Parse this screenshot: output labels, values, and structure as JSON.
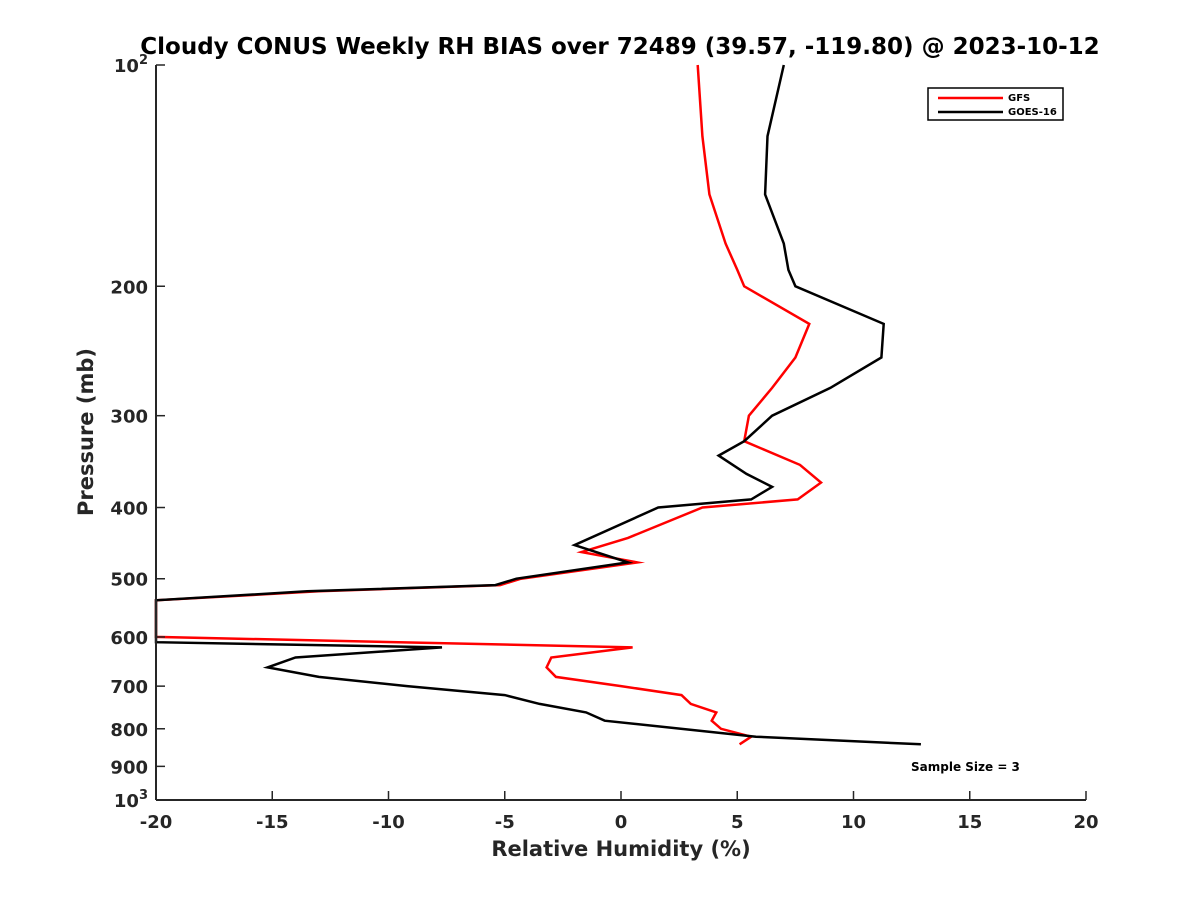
{
  "chart_data": {
    "type": "line",
    "title": "Cloudy CONUS Weekly RH BIAS over 72489 (39.57, -119.80) @ 2023-10-12",
    "xlabel": "Relative Humidity (%)",
    "ylabel": "Pressure (mb)",
    "xlim": [
      -20,
      20
    ],
    "ylim": [
      100,
      1000
    ],
    "yscale": "log",
    "yreversed": true,
    "grid": false,
    "legend_position": "top-right",
    "x_ticks": [
      -20,
      -15,
      -10,
      -5,
      0,
      5,
      10,
      15,
      20
    ],
    "x_tick_labels": [
      "-20",
      "-15",
      "-10",
      "-5",
      "0",
      "5",
      "10",
      "15",
      "20"
    ],
    "y_ticks": [
      100,
      200,
      300,
      400,
      500,
      600,
      700,
      800,
      900,
      1000
    ],
    "y_tick_labels": [
      {
        "base": "10",
        "exp": "2"
      },
      {
        "base": "200",
        "exp": ""
      },
      {
        "base": "300",
        "exp": ""
      },
      {
        "base": "400",
        "exp": ""
      },
      {
        "base": "500",
        "exp": ""
      },
      {
        "base": "600",
        "exp": ""
      },
      {
        "base": "700",
        "exp": ""
      },
      {
        "base": "800",
        "exp": ""
      },
      {
        "base": "900",
        "exp": ""
      },
      {
        "base": "10",
        "exp": "3"
      }
    ],
    "annotation": "Sample Size = 3",
    "series": [
      {
        "name": "GFS",
        "color": "#ff0000",
        "points": [
          [
            3.3,
            100
          ],
          [
            3.5,
            125
          ],
          [
            3.8,
            150
          ],
          [
            4.5,
            175
          ],
          [
            5.0,
            190
          ],
          [
            5.3,
            200
          ],
          [
            8.1,
            225
          ],
          [
            7.5,
            250
          ],
          [
            6.5,
            275
          ],
          [
            5.5,
            300
          ],
          [
            5.3,
            325
          ],
          [
            7.7,
            350
          ],
          [
            8.6,
            370
          ],
          [
            7.6,
            390
          ],
          [
            3.5,
            400
          ],
          [
            0.3,
            440
          ],
          [
            -1.7,
            460
          ],
          [
            0.7,
            475
          ],
          [
            -4.3,
            500
          ],
          [
            -5.2,
            510
          ],
          [
            -13,
            520
          ],
          [
            -20,
            535
          ],
          [
            -20,
            600
          ],
          [
            0.5,
            620
          ],
          [
            -3.0,
            640
          ],
          [
            -3.2,
            660
          ],
          [
            -2.8,
            680
          ],
          [
            0.0,
            700
          ],
          [
            2.6,
            720
          ],
          [
            3.0,
            740
          ],
          [
            4.1,
            760
          ],
          [
            3.9,
            780
          ],
          [
            4.3,
            800
          ],
          [
            5.6,
            820
          ],
          [
            5.1,
            840
          ]
        ]
      },
      {
        "name": "GOES-16",
        "color": "#000000",
        "points": [
          [
            7.0,
            100
          ],
          [
            6.3,
            125
          ],
          [
            6.2,
            150
          ],
          [
            7.0,
            175
          ],
          [
            7.2,
            190
          ],
          [
            7.5,
            200
          ],
          [
            11.3,
            225
          ],
          [
            11.2,
            250
          ],
          [
            9.0,
            275
          ],
          [
            6.5,
            300
          ],
          [
            5.3,
            325
          ],
          [
            4.2,
            340
          ],
          [
            5.4,
            360
          ],
          [
            6.5,
            375
          ],
          [
            5.6,
            390
          ],
          [
            1.6,
            400
          ],
          [
            -2.0,
            450
          ],
          [
            0.3,
            475
          ],
          [
            -4.5,
            500
          ],
          [
            -5.4,
            510
          ],
          [
            -13.5,
            520
          ],
          [
            -20,
            535
          ],
          [
            -20,
            610
          ],
          [
            -7.7,
            620
          ],
          [
            -14.0,
            640
          ],
          [
            -15.2,
            660
          ],
          [
            -13.0,
            680
          ],
          [
            -9.2,
            700
          ],
          [
            -5.0,
            720
          ],
          [
            -3.5,
            740
          ],
          [
            -1.5,
            760
          ],
          [
            -0.7,
            780
          ],
          [
            5.8,
            820
          ],
          [
            12.9,
            840
          ]
        ]
      }
    ]
  }
}
